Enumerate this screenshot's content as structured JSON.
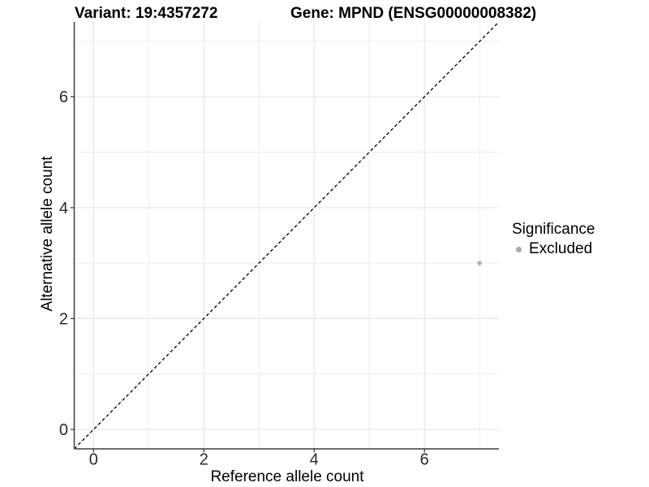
{
  "chart_data": {
    "type": "scatter",
    "title_left": "Variant: 19:4357272",
    "title_right": "Gene: MPND (ENSG00000008382)",
    "xlabel": "Reference allele count",
    "ylabel": "Alternative allele count",
    "xlim": [
      -0.35,
      7.35
    ],
    "ylim": [
      -0.35,
      7.35
    ],
    "x_major_ticks": [
      0,
      2,
      4,
      6
    ],
    "y_major_ticks": [
      0,
      2,
      4,
      6
    ],
    "x_minor_ticks": [
      1,
      3,
      5,
      7
    ],
    "y_minor_ticks": [
      1,
      3,
      5,
      7
    ],
    "grid": true,
    "reference_line": {
      "slope": 1,
      "intercept": 0,
      "style": "dashed",
      "color": "#000000"
    },
    "series": [
      {
        "name": "Excluded",
        "color": "#a9a9a9",
        "points": [
          {
            "x": 7,
            "y": 3
          }
        ]
      }
    ],
    "legend": {
      "title": "Significance",
      "position": "right",
      "items": [
        {
          "label": "Excluded",
          "color": "#a9a9a9"
        }
      ]
    },
    "colors": {
      "grid_major": "#e2e2e2",
      "grid_minor": "#ececec",
      "axis_line": "#3c3c3c",
      "tick_mark": "#333333",
      "tick_label": "#2b2b2b"
    }
  }
}
